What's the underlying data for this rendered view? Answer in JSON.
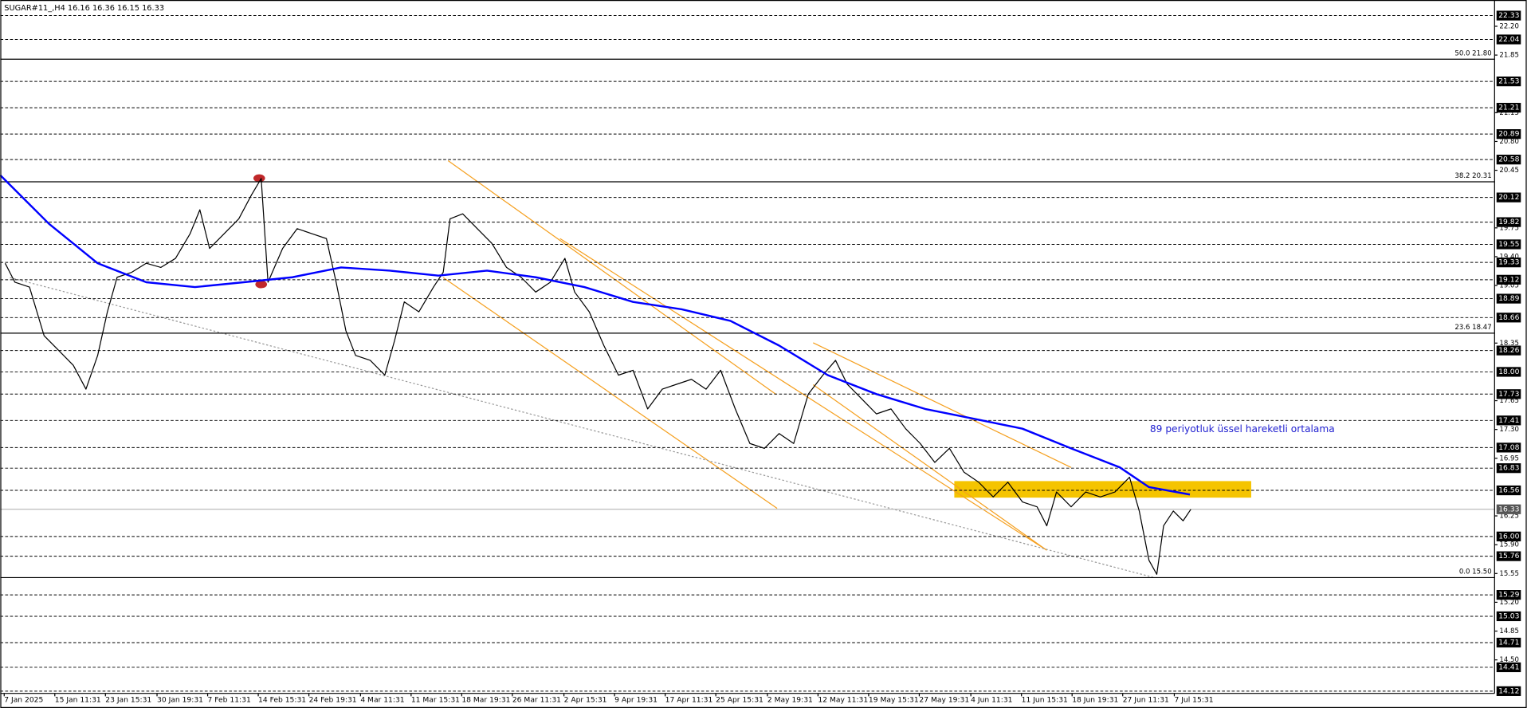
{
  "chart_data": {
    "type": "line",
    "title": "SUGAR#11_,H4  16.16 16.36 16.15 16.33",
    "annotation": "89 periyotluk üssel hareketli ortalama",
    "xlim": [
      0,
      1535
    ],
    "ylim": [
      14.12,
      22.33
    ],
    "xticks": [
      {
        "value": 4,
        "label": "7 Jan 2025"
      },
      {
        "value": 56,
        "label": "15 Jan 11:31"
      },
      {
        "value": 108,
        "label": "23 Jan 15:31"
      },
      {
        "value": 161,
        "label": "30 Jan 19:31"
      },
      {
        "value": 213,
        "label": "7 Feb 11:31"
      },
      {
        "value": 265,
        "label": "14 Feb 15:31"
      },
      {
        "value": 317,
        "label": "24 Feb 19:31"
      },
      {
        "value": 370,
        "label": "4 Mar 11:31"
      },
      {
        "value": 422,
        "label": "11 Mar 15:31"
      },
      {
        "value": 474,
        "label": "18 Mar 19:31"
      },
      {
        "value": 526,
        "label": "26 Mar 11:31"
      },
      {
        "value": 579,
        "label": "2 Apr 15:31"
      },
      {
        "value": 631,
        "label": "9 Apr 19:31"
      },
      {
        "value": 683,
        "label": "17 Apr 11:31"
      },
      {
        "value": 735,
        "label": "25 Apr 15:31"
      },
      {
        "value": 788,
        "label": "2 May 19:31"
      },
      {
        "value": 840,
        "label": "12 May 11:31"
      },
      {
        "value": 892,
        "label": "19 May 15:31"
      },
      {
        "value": 944,
        "label": "27 May 19:31"
      },
      {
        "value": 997,
        "label": "4 Jun 11:31"
      },
      {
        "value": 1049,
        "label": "11 Jun 15:31"
      },
      {
        "value": 1101,
        "label": "18 Jun 19:31"
      },
      {
        "value": 1153,
        "label": "27 Jun 11:31"
      },
      {
        "value": 1206,
        "label": "7 Jul 15:31"
      }
    ],
    "yticks": [
      {
        "value": 22.2,
        "label": "22.20"
      },
      21.85,
      21.15,
      {
        "value": 20.8,
        "label": "20.80"
      },
      20.45,
      19.75,
      {
        "value": 19.4,
        "label": "19.40"
      },
      19.05,
      18.35,
      17.65,
      {
        "value": 17.3,
        "label": "17.30"
      },
      16.95,
      16.25,
      {
        "value": 15.9,
        "label": "15.90"
      },
      15.55,
      {
        "value": 15.2,
        "label": "15.20"
      },
      14.85,
      {
        "value": 14.5,
        "label": "14.50"
      }
    ],
    "levels": [
      22.33,
      22.04,
      21.53,
      21.21,
      20.89,
      20.58,
      20.12,
      19.82,
      19.55,
      19.33,
      19.12,
      18.89,
      18.66,
      18.26,
      {
        "value": 18.0,
        "label": "18.00"
      },
      17.73,
      17.41,
      17.08,
      16.83,
      16.56,
      {
        "value": 16.0,
        "label": "16.00"
      },
      15.76,
      15.29,
      15.03,
      14.71,
      14.41,
      14.12
    ],
    "last_price": 16.33,
    "fib_levels": [
      {
        "value": 21.8,
        "label": "50.0 21.80"
      },
      {
        "value": 20.31,
        "label": "38.2 20.31"
      },
      {
        "value": 18.47,
        "label": "23.6 18.47"
      },
      {
        "value": 15.5,
        "label": "0.0 15.50"
      }
    ],
    "series": [
      {
        "color": "#000000",
        "x": [
          5,
          15,
          30,
          45,
          60,
          75,
          88,
          100,
          110,
          120,
          135,
          150,
          165,
          180,
          195,
          205,
          215,
          230,
          245,
          258,
          268,
          275,
          290,
          305,
          320,
          335,
          345,
          355,
          365,
          380,
          395,
          405,
          415,
          430,
          445,
          455,
          462,
          475,
          490,
          505,
          520,
          535,
          550,
          565,
          580,
          590,
          605,
          620,
          635,
          650,
          665,
          680,
          695,
          710,
          725,
          740,
          755,
          770,
          785,
          800,
          815,
          830,
          845,
          858,
          870,
          885,
          900,
          915,
          930,
          945,
          960,
          975,
          990,
          1005,
          1020,
          1035,
          1050,
          1065,
          1075,
          1085,
          1100,
          1115,
          1130,
          1145,
          1160,
          1170,
          1180,
          1188,
          1195,
          1205,
          1215,
          1223
        ],
        "values": [
          19.32,
          19.09,
          19.03,
          18.44,
          18.26,
          18.08,
          17.79,
          18.2,
          18.73,
          19.15,
          19.21,
          19.32,
          19.27,
          19.38,
          19.68,
          19.97,
          19.5,
          19.68,
          19.86,
          20.15,
          20.35,
          19.09,
          19.5,
          19.74,
          19.68,
          19.62,
          19.09,
          18.5,
          18.2,
          18.14,
          17.96,
          18.38,
          18.85,
          18.73,
          19.03,
          19.21,
          19.86,
          19.92,
          19.74,
          19.56,
          19.27,
          19.15,
          18.97,
          19.09,
          19.38,
          18.97,
          18.73,
          18.32,
          17.96,
          18.02,
          17.55,
          17.79,
          17.85,
          17.91,
          17.79,
          18.02,
          17.55,
          17.13,
          17.07,
          17.25,
          17.13,
          17.73,
          17.96,
          18.14,
          17.85,
          17.67,
          17.49,
          17.55,
          17.31,
          17.13,
          16.9,
          17.07,
          16.78,
          16.66,
          16.48,
          16.66,
          16.42,
          16.36,
          16.13,
          16.54,
          16.36,
          16.54,
          16.48,
          16.54,
          16.72,
          16.31,
          15.71,
          15.54,
          16.13,
          16.31,
          16.19,
          16.33
        ]
      },
      {
        "color": "#0000ff",
        "x": [
          0,
          50,
          100,
          150,
          200,
          250,
          300,
          350,
          400,
          450,
          500,
          550,
          600,
          650,
          700,
          750,
          800,
          850,
          900,
          950,
          1000,
          1050,
          1100,
          1150,
          1180,
          1222
        ],
        "values": [
          20.39,
          19.8,
          19.32,
          19.09,
          19.03,
          19.09,
          19.15,
          19.27,
          19.23,
          19.17,
          19.23,
          19.15,
          19.03,
          18.85,
          18.76,
          18.62,
          18.32,
          17.96,
          17.73,
          17.55,
          17.43,
          17.31,
          17.07,
          16.84,
          16.6,
          16.51
        ]
      }
    ]
  }
}
